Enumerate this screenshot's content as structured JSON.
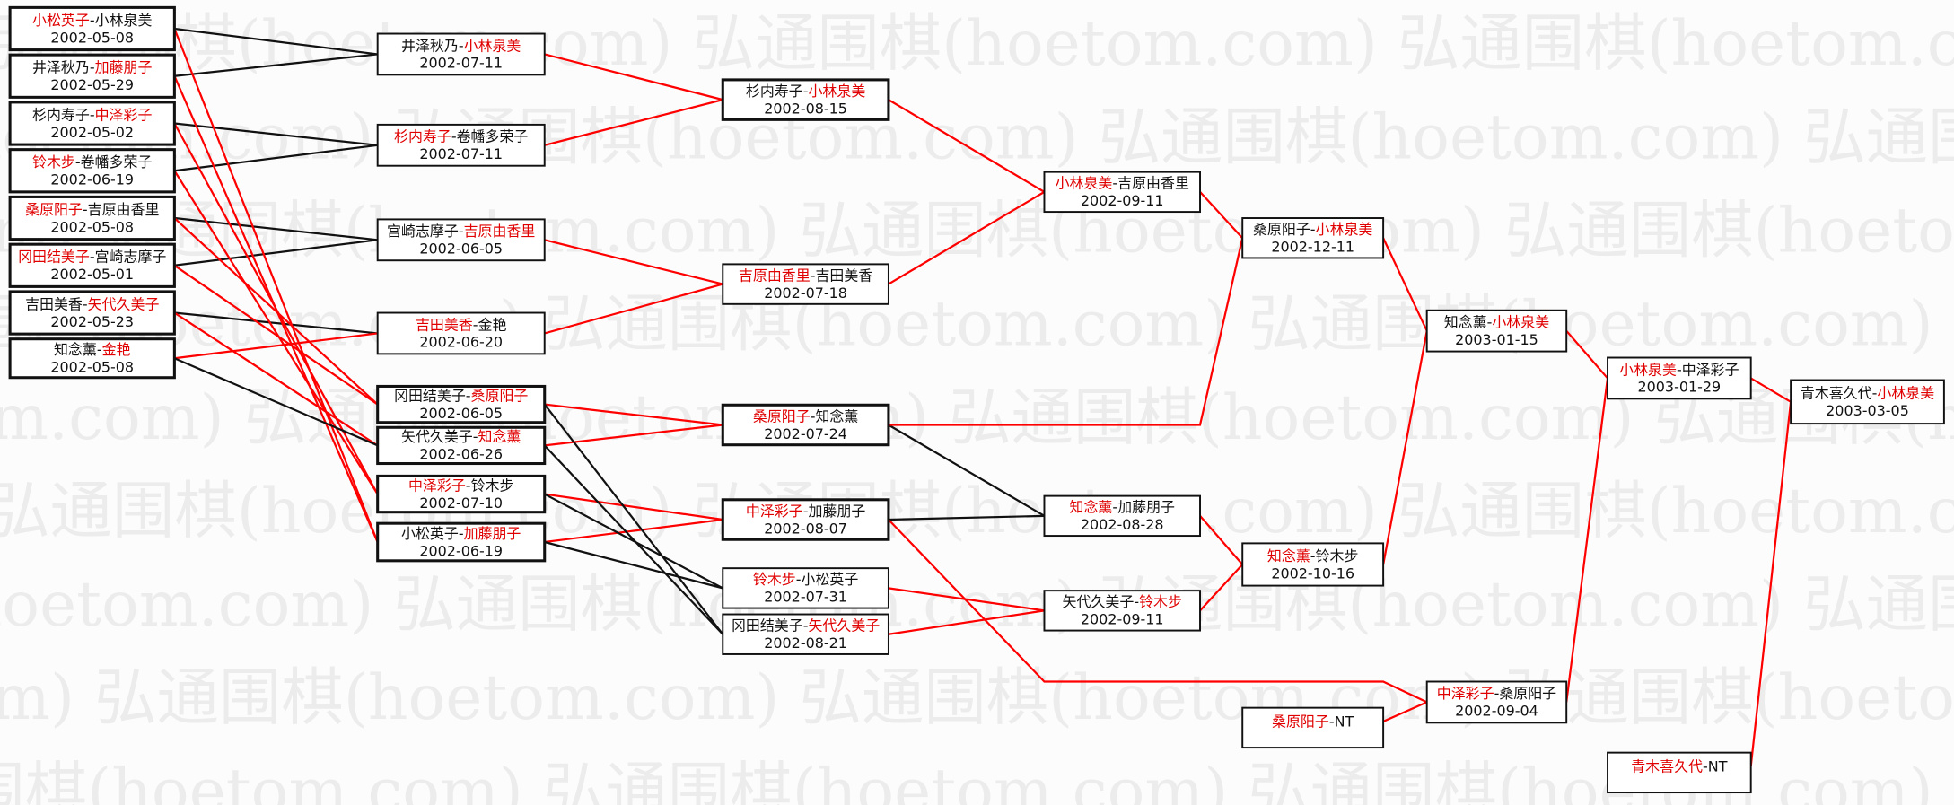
{
  "watermark": "弘通围棋(hoetom.com)",
  "colors": {
    "winner": "#e00000",
    "loser": "#111111",
    "win_line": "#ff0000",
    "other_line": "#111111"
  },
  "matches": [
    {
      "id": "a1",
      "p1": "小松英子",
      "p2": "小林泉美",
      "winner": 1,
      "date": "2002-05-08"
    },
    {
      "id": "a2",
      "p1": "井泽秋乃",
      "p2": "加藤朋子",
      "winner": 2,
      "date": "2002-05-29"
    },
    {
      "id": "a3",
      "p1": "杉内寿子",
      "p2": "中泽彩子",
      "winner": 2,
      "date": "2002-05-02"
    },
    {
      "id": "a4",
      "p1": "铃木步",
      "p2": "卷幡多荣子",
      "winner": 1,
      "date": "2002-06-19"
    },
    {
      "id": "a5",
      "p1": "桑原阳子",
      "p2": "吉原由香里",
      "winner": 1,
      "date": "2002-05-08"
    },
    {
      "id": "a6",
      "p1": "冈田结美子",
      "p2": "宫崎志摩子",
      "winner": 1,
      "date": "2002-05-01"
    },
    {
      "id": "a7",
      "p1": "吉田美香",
      "p2": "矢代久美子",
      "winner": 2,
      "date": "2002-05-23"
    },
    {
      "id": "a8",
      "p1": "知念薰",
      "p2": "金艳",
      "winner": 2,
      "date": "2002-05-08"
    },
    {
      "id": "b1",
      "p1": "井泽秋乃",
      "p2": "小林泉美",
      "winner": 2,
      "date": "2002-07-11"
    },
    {
      "id": "b2",
      "p1": "杉内寿子",
      "p2": "卷幡多荣子",
      "winner": 1,
      "date": "2002-07-11"
    },
    {
      "id": "b3",
      "p1": "宫崎志摩子",
      "p2": "吉原由香里",
      "winner": 2,
      "date": "2002-06-05"
    },
    {
      "id": "b4",
      "p1": "吉田美香",
      "p2": "金艳",
      "winner": 1,
      "date": "2002-06-20"
    },
    {
      "id": "b5",
      "p1": "冈田结美子",
      "p2": "桑原阳子",
      "winner": 2,
      "date": "2002-06-05"
    },
    {
      "id": "b6",
      "p1": "矢代久美子",
      "p2": "知念薰",
      "winner": 2,
      "date": "2002-06-26"
    },
    {
      "id": "b7",
      "p1": "中泽彩子",
      "p2": "铃木步",
      "winner": 1,
      "date": "2002-07-10"
    },
    {
      "id": "b8",
      "p1": "小松英子",
      "p2": "加藤朋子",
      "winner": 2,
      "date": "2002-06-19"
    },
    {
      "id": "c1",
      "p1": "杉内寿子",
      "p2": "小林泉美",
      "winner": 2,
      "date": "2002-08-15"
    },
    {
      "id": "c2",
      "p1": "吉原由香里",
      "p2": "吉田美香",
      "winner": 1,
      "date": "2002-07-18"
    },
    {
      "id": "c3",
      "p1": "桑原阳子",
      "p2": "知念薰",
      "winner": 1,
      "date": "2002-07-24"
    },
    {
      "id": "c4",
      "p1": "中泽彩子",
      "p2": "加藤朋子",
      "winner": 1,
      "date": "2002-08-07"
    },
    {
      "id": "c5",
      "p1": "铃木步",
      "p2": "小松英子",
      "winner": 1,
      "date": "2002-07-31"
    },
    {
      "id": "c6",
      "p1": "冈田结美子",
      "p2": "矢代久美子",
      "winner": 2,
      "date": "2002-08-21"
    },
    {
      "id": "d1",
      "p1": "小林泉美",
      "p2": "吉原由香里",
      "winner": 1,
      "date": "2002-09-11"
    },
    {
      "id": "d2",
      "p1": "知念薰",
      "p2": "加藤朋子",
      "winner": 1,
      "date": "2002-08-28"
    },
    {
      "id": "d3",
      "p1": "矢代久美子",
      "p2": "铃木步",
      "winner": 2,
      "date": "2002-09-11"
    },
    {
      "id": "e1",
      "p1": "桑原阳子",
      "p2": "小林泉美",
      "winner": 2,
      "date": "2002-12-11"
    },
    {
      "id": "e2",
      "p1": "知念薰",
      "p2": "铃木步",
      "winner": 1,
      "date": "2002-10-16"
    },
    {
      "id": "e3",
      "p1": "桑原阳子",
      "p2": "NT",
      "winner": 1,
      "date": ""
    },
    {
      "id": "f1",
      "p1": "知念薰",
      "p2": "小林泉美",
      "winner": 2,
      "date": "2003-01-15"
    },
    {
      "id": "f2",
      "p1": "中泽彩子",
      "p2": "桑原阳子",
      "winner": 1,
      "date": "2002-09-04"
    },
    {
      "id": "g1",
      "p1": "小林泉美",
      "p2": "中泽彩子",
      "winner": 1,
      "date": "2003-01-29"
    },
    {
      "id": "g2",
      "p1": "青木喜久代",
      "p2": "NT",
      "winner": 1,
      "date": ""
    },
    {
      "id": "h1",
      "p1": "青木喜久代",
      "p2": "小林泉美",
      "winner": 2,
      "date": "2003-03-05"
    }
  ],
  "edges": [
    {
      "from": "a1",
      "to": "b1",
      "line": "other"
    },
    {
      "from": "a2",
      "to": "b1",
      "line": "other"
    },
    {
      "from": "a3",
      "to": "b2",
      "line": "other"
    },
    {
      "from": "a4",
      "to": "b2",
      "line": "other"
    },
    {
      "from": "a5",
      "to": "b3",
      "line": "other"
    },
    {
      "from": "a6",
      "to": "b3",
      "line": "other"
    },
    {
      "from": "a7",
      "to": "b4",
      "line": "other"
    },
    {
      "from": "a8",
      "to": "b4",
      "line": "win"
    },
    {
      "from": "a1",
      "to": "b8",
      "line": "win"
    },
    {
      "from": "a2",
      "to": "b8",
      "line": "win"
    },
    {
      "from": "a3",
      "to": "b7",
      "line": "win"
    },
    {
      "from": "a4",
      "to": "b7",
      "line": "win"
    },
    {
      "from": "a5",
      "to": "b5",
      "line": "win"
    },
    {
      "from": "a6",
      "to": "b5",
      "line": "win"
    },
    {
      "from": "a7",
      "to": "b6",
      "line": "win"
    },
    {
      "from": "a8",
      "to": "b6",
      "line": "other"
    },
    {
      "from": "b1",
      "to": "c1",
      "line": "win"
    },
    {
      "from": "b2",
      "to": "c1",
      "line": "win"
    },
    {
      "from": "b3",
      "to": "c2",
      "line": "win"
    },
    {
      "from": "b4",
      "to": "c2",
      "line": "win"
    },
    {
      "from": "b5",
      "to": "c3",
      "line": "win"
    },
    {
      "from": "b6",
      "to": "c3",
      "line": "win"
    },
    {
      "from": "b7",
      "to": "c4",
      "line": "win"
    },
    {
      "from": "b8",
      "to": "c4",
      "line": "win"
    },
    {
      "from": "b7",
      "to": "c5",
      "line": "other"
    },
    {
      "from": "b8",
      "to": "c5",
      "line": "other"
    },
    {
      "from": "b5",
      "to": "c6",
      "line": "other"
    },
    {
      "from": "b6",
      "to": "c6",
      "line": "other"
    },
    {
      "from": "c1",
      "to": "d1",
      "line": "win"
    },
    {
      "from": "c2",
      "to": "d1",
      "line": "win"
    },
    {
      "from": "c3",
      "to": "d2",
      "line": "other"
    },
    {
      "from": "c4",
      "to": "d2",
      "line": "other"
    },
    {
      "from": "c5",
      "to": "d3",
      "line": "win"
    },
    {
      "from": "c6",
      "to": "d3",
      "line": "win"
    },
    {
      "from": "d1",
      "to": "e1",
      "line": "win"
    },
    {
      "from": "c3",
      "to": "e1",
      "line": "win"
    },
    {
      "from": "d2",
      "to": "e2",
      "line": "win"
    },
    {
      "from": "d3",
      "to": "e2",
      "line": "win"
    },
    {
      "from": "e1",
      "to": "f1",
      "line": "win"
    },
    {
      "from": "e2",
      "to": "f1",
      "line": "win"
    },
    {
      "from": "c4",
      "to": "f2",
      "line": "win"
    },
    {
      "from": "e3",
      "to": "f2",
      "line": "win"
    },
    {
      "from": "f1",
      "to": "g1",
      "line": "win"
    },
    {
      "from": "f2",
      "to": "g1",
      "line": "win"
    },
    {
      "from": "g1",
      "to": "h1",
      "line": "win"
    },
    {
      "from": "g2",
      "to": "h1",
      "line": "win"
    }
  ]
}
